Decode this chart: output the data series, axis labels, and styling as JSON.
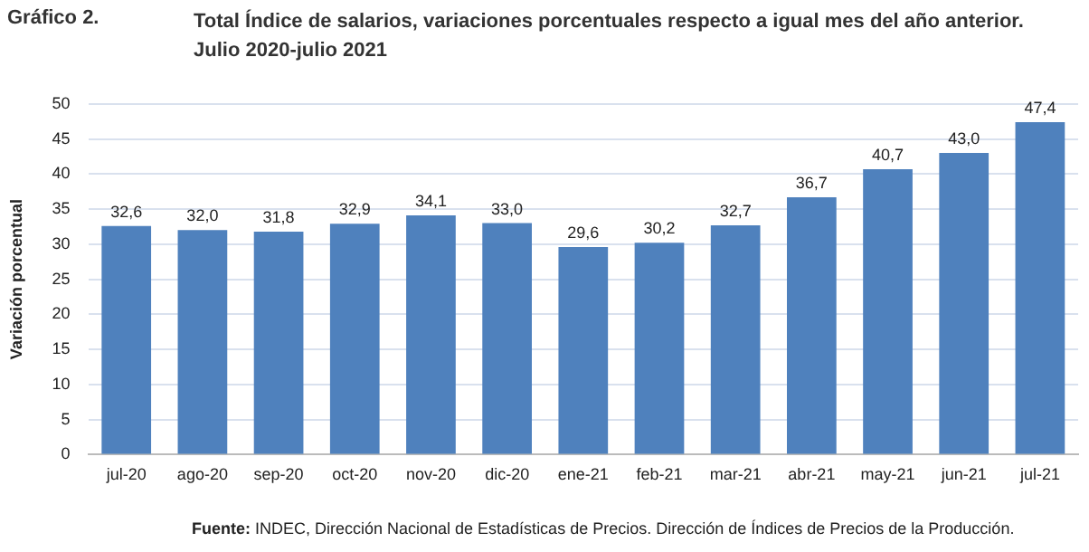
{
  "chart_data": {
    "type": "bar",
    "title": "Total Índice de salarios, variaciones porcentuales respecto a igual mes del año anterior.",
    "subtitle": "Julio 2020-julio 2021",
    "ylabel": "Variación porcentual",
    "categories": [
      "jul-20",
      "ago-20",
      "sep-20",
      "oct-20",
      "nov-20",
      "dic-20",
      "ene-21",
      "feb-21",
      "mar-21",
      "abr-21",
      "may-21",
      "jun-21",
      "jul-21"
    ],
    "values": [
      32.6,
      32.0,
      31.8,
      32.9,
      34.1,
      33.0,
      29.6,
      30.2,
      32.7,
      36.7,
      40.7,
      43.0,
      47.4
    ],
    "value_labels": [
      "32,6",
      "32,0",
      "31,8",
      "32,9",
      "34,1",
      "33,0",
      "29,6",
      "30,2",
      "32,7",
      "36,7",
      "40,7",
      "43,0",
      "47,4"
    ],
    "color": "#4f81bd",
    "ylim": [
      0,
      50
    ],
    "yticks": [
      0,
      5,
      10,
      15,
      20,
      25,
      30,
      35,
      40,
      45,
      50
    ],
    "grid": "y",
    "legend": false,
    "annotations": [
      "Gráfico 2.",
      "Fuente: INDEC, Dirección Nacional de Estadísticas de Precios. Dirección de Índices de Precios de la Producción."
    ]
  }
}
